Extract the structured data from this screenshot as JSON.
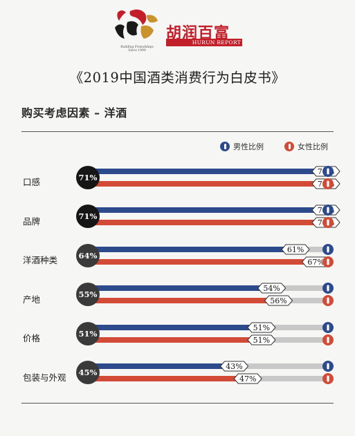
{
  "header": {
    "logo_tagline_1": "Building Friendships",
    "logo_tagline_2": "Since 1999",
    "brand_cn": "胡润百富",
    "brand_en": "HURUN REPORT",
    "book_title": "《2019中国酒类消费行为白皮书》"
  },
  "legend": {
    "male": "男性比例",
    "female": "女性比例"
  },
  "colors": {
    "male": "#2d4a8c",
    "female": "#d24b37",
    "track": "#c8c8c8",
    "circle_dark": "#161616",
    "circle_mid": "#3a3a3a"
  },
  "chart_data": {
    "type": "bar",
    "title": "购买考虑因素 – 洋酒",
    "categories": [
      "口感",
      "品牌",
      "洋酒种类",
      "产地",
      "价格",
      "包装与外观"
    ],
    "totals": [
      71,
      71,
      64,
      55,
      51,
      45
    ],
    "series": [
      {
        "name": "男性比例",
        "values": [
          71,
          71,
          61,
          54,
          51,
          43
        ]
      },
      {
        "name": "女性比例",
        "values": [
          72,
          70,
          67,
          56,
          51,
          47
        ]
      }
    ],
    "unit": "%",
    "xlim": [
      0,
      100
    ],
    "legend_position": "top-right"
  }
}
